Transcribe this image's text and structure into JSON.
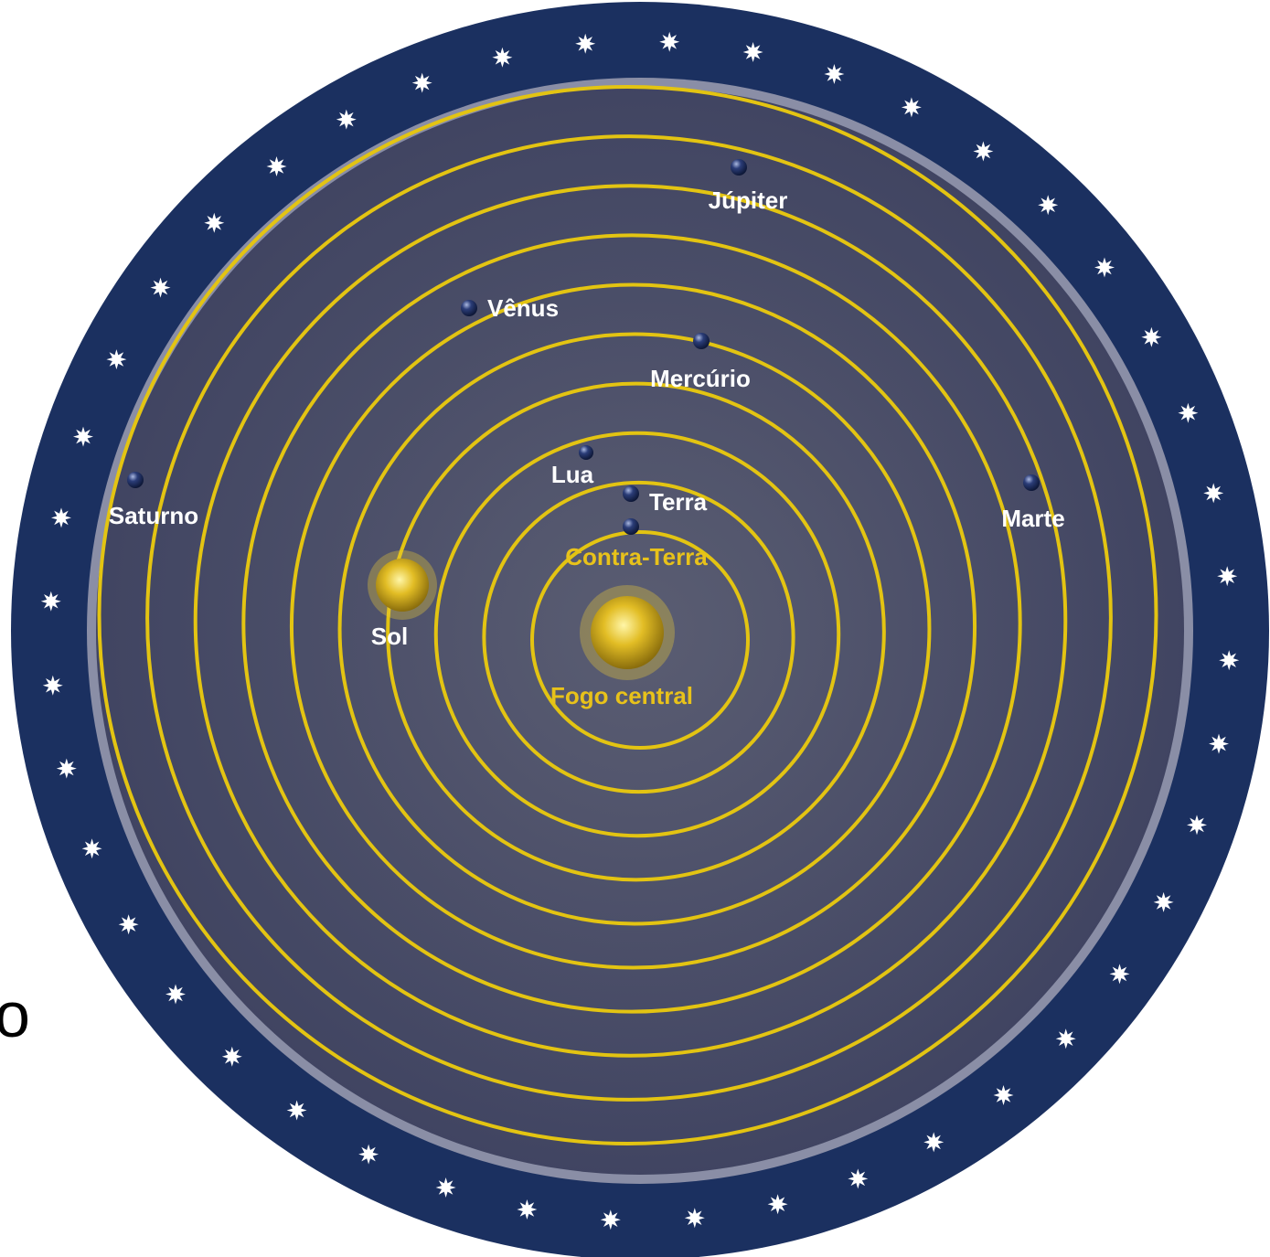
{
  "diagram": {
    "colors": {
      "background": "#ffffff",
      "star_ring": "#1b3060",
      "inner_disc": "#4c5068",
      "orbit": "#e3c412",
      "planet": "#1f2f64",
      "sun": "#d9b21c",
      "label_white": "#ffffff",
      "label_yellow": "#e8c21a"
    },
    "orbit_count": 10,
    "central_fire": {
      "label": "Fogo central"
    },
    "bodies": [
      {
        "name": "Contra-Terra",
        "kind": "planet",
        "label_color": "yellow"
      },
      {
        "name": "Terra",
        "kind": "planet",
        "label_color": "white"
      },
      {
        "name": "Lua",
        "kind": "planet",
        "label_color": "white"
      },
      {
        "name": "Sol",
        "kind": "sun",
        "label_color": "white"
      },
      {
        "name": "Mercúrio",
        "kind": "planet",
        "label_color": "white"
      },
      {
        "name": "Vênus",
        "kind": "planet",
        "label_color": "white"
      },
      {
        "name": "Marte",
        "kind": "planet",
        "label_color": "white"
      },
      {
        "name": "Júpiter",
        "kind": "planet",
        "label_color": "white"
      },
      {
        "name": "Saturno",
        "kind": "planet",
        "label_color": "white"
      }
    ]
  },
  "edge_text": "o"
}
